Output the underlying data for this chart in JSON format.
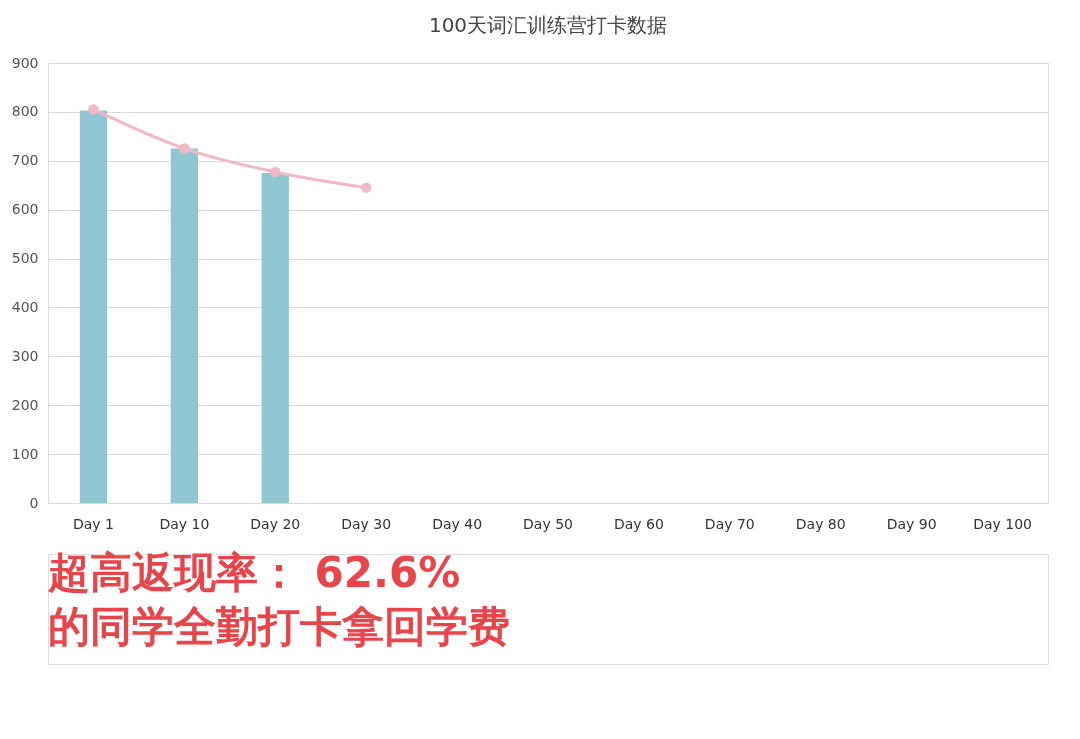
{
  "chart_data": {
    "type": "bar",
    "title": "100天词汇训练营打卡数据",
    "categories": [
      "Day 1",
      "Day 10",
      "Day 20",
      "Day 30",
      "Day 40",
      "Day 50",
      "Day 60",
      "Day 70",
      "Day 80",
      "Day 90",
      "Day 100"
    ],
    "series": [
      {
        "color": "#8ec6d4",
        "values": [
          803,
          725,
          675,
          null,
          null,
          null,
          null,
          null,
          null,
          null,
          null
        ]
      },
      {
        "type": "line",
        "color": "#f2b8c6",
        "values": [
          805,
          725,
          677,
          645,
          null,
          null,
          null,
          null,
          null,
          null,
          null
        ]
      }
    ],
    "ylim": [
      0,
      900
    ],
    "yticks": [
      0,
      100,
      200,
      300,
      400,
      500,
      600,
      700,
      800,
      900
    ],
    "grid": "y",
    "legend": false,
    "marker": "circle",
    "annotations": [
      "超高返现率： 62.6% 的同学全勤打卡拿回学费"
    ]
  }
}
